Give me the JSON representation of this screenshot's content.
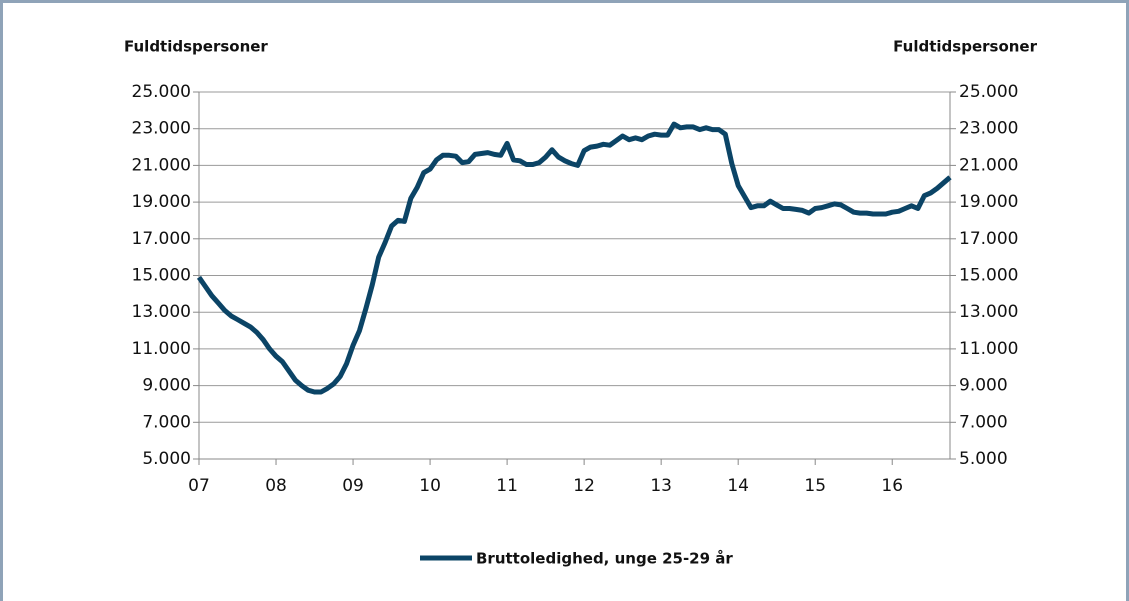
{
  "chart_data": {
    "type": "line",
    "y_label": "Fuldtidspersoner",
    "y2_label": "Fuldtidspersoner",
    "categories": [
      "07",
      null,
      null,
      null,
      null,
      null,
      null,
      null,
      null,
      null,
      null,
      null,
      "08",
      null,
      null,
      null,
      null,
      null,
      null,
      null,
      null,
      null,
      null,
      null,
      "09",
      null,
      null,
      null,
      null,
      null,
      null,
      null,
      null,
      null,
      null,
      null,
      "10",
      null,
      null,
      null,
      null,
      null,
      null,
      null,
      null,
      null,
      null,
      null,
      "11",
      null,
      null,
      null,
      null,
      null,
      null,
      null,
      null,
      null,
      null,
      null,
      "12",
      null,
      null,
      null,
      null,
      null,
      null,
      null,
      null,
      null,
      null,
      null,
      "13",
      null,
      null,
      null,
      null,
      null,
      null,
      null,
      null,
      null,
      null,
      null,
      "14",
      null,
      null,
      null,
      null,
      null,
      null,
      null,
      null,
      null,
      null,
      null,
      "15",
      null,
      null,
      null,
      null,
      null,
      null,
      null,
      null,
      null,
      null,
      null,
      "16",
      null,
      null,
      null,
      null,
      null,
      null,
      null,
      null,
      null
    ],
    "series": [
      {
        "name": "Bruttoledighed, unge 25-29 år",
        "color": "#0b4466",
        "values": [
          14900,
          14400,
          13900,
          13500,
          13100,
          12800,
          12600,
          12400,
          12200,
          11900,
          11500,
          11000,
          10600,
          10300,
          9800,
          9300,
          9000,
          8750,
          8650,
          8650,
          8850,
          9100,
          9500,
          10200,
          11200,
          12000,
          13200,
          14500,
          16000,
          16800,
          17700,
          18000,
          17950,
          19200,
          19800,
          20600,
          20800,
          21300,
          21550,
          21550,
          21500,
          21150,
          21200,
          21600,
          21650,
          21700,
          21600,
          21550,
          22200,
          21300,
          21250,
          21050,
          21050,
          21150,
          21450,
          21850,
          21450,
          21250,
          21100,
          21000,
          21800,
          22000,
          22050,
          22150,
          22100,
          22350,
          22600,
          22400,
          22500,
          22400,
          22600,
          22700,
          22650,
          22650,
          23250,
          23050,
          23100,
          23100,
          22950,
          23050,
          22950,
          22950,
          22700,
          21100,
          19900,
          19300,
          18700,
          18800,
          18800,
          19050,
          18850,
          18650,
          18650,
          18600,
          18550,
          18400,
          18650,
          18700,
          18800,
          18900,
          18850,
          18650,
          18450,
          18400,
          18400,
          18350,
          18350,
          18350,
          18450,
          18500,
          18650,
          18800,
          18650,
          19350,
          19500,
          19750,
          20050,
          20350
        ]
      }
    ],
    "ylim": [
      5000,
      25000
    ],
    "yticks": [
      {
        "value": 5000,
        "label": "5.000"
      },
      {
        "value": 7000,
        "label": "7.000"
      },
      {
        "value": 9000,
        "label": "9.000"
      },
      {
        "value": 11000,
        "label": "11.000"
      },
      {
        "value": 13000,
        "label": "13.000"
      },
      {
        "value": 15000,
        "label": "15.000"
      },
      {
        "value": 17000,
        "label": "17.000"
      },
      {
        "value": 19000,
        "label": "19.000"
      },
      {
        "value": 21000,
        "label": "21.000"
      },
      {
        "value": 23000,
        "label": "23.000"
      },
      {
        "value": 25000,
        "label": "25.000"
      }
    ],
    "y2lim": [
      5000,
      25000
    ],
    "y2ticks": [
      {
        "value": 5000,
        "label": "5.000"
      },
      {
        "value": 7000,
        "label": "7.000"
      },
      {
        "value": 9000,
        "label": "9.000"
      },
      {
        "value": 11000,
        "label": "11.000"
      },
      {
        "value": 13000,
        "label": "13.000"
      },
      {
        "value": 15000,
        "label": "15.000"
      },
      {
        "value": 17000,
        "label": "17.000"
      },
      {
        "value": 19000,
        "label": "19.000"
      },
      {
        "value": 21000,
        "label": "21.000"
      },
      {
        "value": 23000,
        "label": "23.000"
      },
      {
        "value": 25000,
        "label": "25.000"
      }
    ],
    "grid": true,
    "legend": "bottom"
  }
}
